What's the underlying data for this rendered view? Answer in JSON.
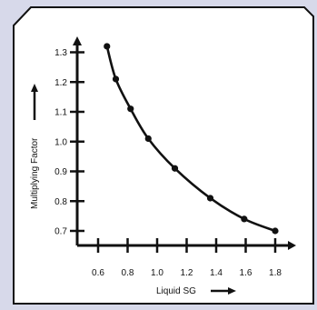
{
  "colors": {
    "page_background": "#d7d9ea",
    "panel_fill": "#ffffff",
    "ink": "#111111"
  },
  "chart_data": {
    "type": "line",
    "title": "",
    "xlabel": "Liquid SG",
    "ylabel": "Multiplying Factor",
    "xlim": [
      0.5,
      1.9
    ],
    "ylim": [
      0.6,
      1.4
    ],
    "xticks": [
      "0.6",
      "0.8",
      "1.0",
      "1.2",
      "1.4",
      "1.6",
      "1.8"
    ],
    "yticks": [
      "0.7",
      "0.8",
      "0.9",
      "1.0",
      "1.1",
      "1.2",
      "1.3"
    ],
    "grid": false,
    "legend": "none",
    "series": [
      {
        "x": [
          0.66,
          0.72,
          0.82,
          0.94,
          1.12,
          1.36,
          1.59,
          1.8
        ],
        "y": [
          1.32,
          1.21,
          1.11,
          1.01,
          0.91,
          0.81,
          0.74,
          0.7
        ]
      }
    ]
  }
}
